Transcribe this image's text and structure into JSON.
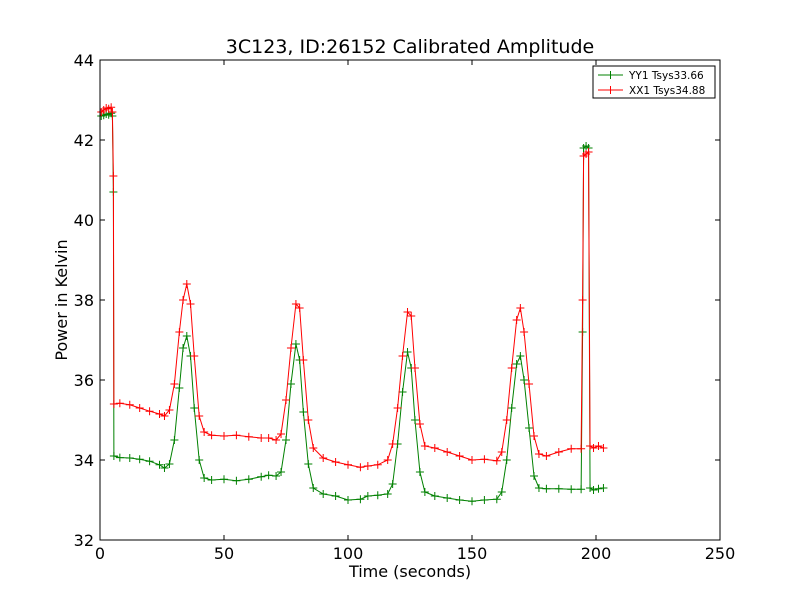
{
  "chart_data": {
    "type": "line",
    "title": "3C123, ID:26152 Calibrated Amplitude",
    "xlabel": "Time (seconds)",
    "ylabel": "Power in Kelvin",
    "xlim": [
      0,
      250
    ],
    "ylim": [
      32,
      44
    ],
    "xticks": [
      0,
      50,
      100,
      150,
      200,
      250
    ],
    "yticks": [
      32,
      34,
      36,
      38,
      40,
      42,
      44
    ],
    "grid": false,
    "legend_position": "top-right",
    "marker": "+",
    "series": [
      {
        "name": "YY1 Tsys33.66",
        "color": "#008000",
        "points": [
          [
            0.5,
            42.6
          ],
          [
            1.5,
            42.62
          ],
          [
            2.5,
            42.65
          ],
          [
            3.5,
            42.63
          ],
          [
            4.5,
            42.67
          ],
          [
            5.0,
            42.6
          ],
          [
            5.4,
            40.7
          ],
          [
            5.6,
            34.1
          ],
          [
            8,
            34.06
          ],
          [
            12,
            34.05
          ],
          [
            16,
            34.02
          ],
          [
            20,
            33.97
          ],
          [
            24,
            33.88
          ],
          [
            26,
            33.8
          ],
          [
            28,
            33.9
          ],
          [
            30,
            34.5
          ],
          [
            32,
            35.8
          ],
          [
            33.5,
            36.8
          ],
          [
            35,
            37.1
          ],
          [
            36.5,
            36.6
          ],
          [
            38,
            35.3
          ],
          [
            40,
            34.0
          ],
          [
            42,
            33.55
          ],
          [
            45,
            33.5
          ],
          [
            50,
            33.52
          ],
          [
            55,
            33.48
          ],
          [
            60,
            33.52
          ],
          [
            65,
            33.58
          ],
          [
            68,
            33.62
          ],
          [
            71,
            33.6
          ],
          [
            73,
            33.7
          ],
          [
            75,
            34.5
          ],
          [
            77,
            35.9
          ],
          [
            79,
            36.9
          ],
          [
            80.5,
            36.5
          ],
          [
            82,
            35.2
          ],
          [
            84,
            33.9
          ],
          [
            86,
            33.3
          ],
          [
            90,
            33.15
          ],
          [
            95,
            33.1
          ],
          [
            100,
            33.0
          ],
          [
            105,
            33.02
          ],
          [
            108,
            33.1
          ],
          [
            112,
            33.12
          ],
          [
            116,
            33.15
          ],
          [
            118,
            33.4
          ],
          [
            120,
            34.4
          ],
          [
            122,
            35.7
          ],
          [
            124,
            36.7
          ],
          [
            125.5,
            36.3
          ],
          [
            127,
            35.0
          ],
          [
            129,
            33.7
          ],
          [
            131,
            33.2
          ],
          [
            135,
            33.1
          ],
          [
            140,
            33.05
          ],
          [
            145,
            33.0
          ],
          [
            150,
            32.97
          ],
          [
            155,
            33.0
          ],
          [
            160,
            33.02
          ],
          [
            162,
            33.2
          ],
          [
            164,
            34.0
          ],
          [
            166,
            35.3
          ],
          [
            168,
            36.4
          ],
          [
            169.5,
            36.6
          ],
          [
            171,
            36.0
          ],
          [
            173,
            34.8
          ],
          [
            175,
            33.6
          ],
          [
            177,
            33.3
          ],
          [
            180,
            33.28
          ],
          [
            185,
            33.28
          ],
          [
            190,
            33.27
          ],
          [
            194,
            33.27
          ],
          [
            194.6,
            37.2
          ],
          [
            195,
            41.8
          ],
          [
            196,
            41.85
          ],
          [
            197,
            41.8
          ],
          [
            197.6,
            33.3
          ],
          [
            199,
            33.25
          ],
          [
            201,
            33.28
          ],
          [
            203,
            33.3
          ]
        ]
      },
      {
        "name": "XX1 Tsys34.88",
        "color": "#ff0000",
        "points": [
          [
            0.5,
            42.7
          ],
          [
            1.5,
            42.75
          ],
          [
            2.5,
            42.8
          ],
          [
            3.5,
            42.78
          ],
          [
            4.5,
            42.82
          ],
          [
            5.0,
            42.7
          ],
          [
            5.4,
            41.1
          ],
          [
            5.6,
            35.4
          ],
          [
            8,
            35.42
          ],
          [
            12,
            35.38
          ],
          [
            16,
            35.3
          ],
          [
            20,
            35.22
          ],
          [
            24,
            35.15
          ],
          [
            26,
            35.1
          ],
          [
            28,
            35.25
          ],
          [
            30,
            35.9
          ],
          [
            32,
            37.2
          ],
          [
            33.5,
            38.0
          ],
          [
            35,
            38.4
          ],
          [
            36.5,
            37.9
          ],
          [
            38,
            36.6
          ],
          [
            40,
            35.1
          ],
          [
            42,
            34.7
          ],
          [
            45,
            34.62
          ],
          [
            50,
            34.6
          ],
          [
            55,
            34.62
          ],
          [
            60,
            34.58
          ],
          [
            65,
            34.55
          ],
          [
            68,
            34.55
          ],
          [
            71,
            34.5
          ],
          [
            73,
            34.65
          ],
          [
            75,
            35.5
          ],
          [
            77,
            36.8
          ],
          [
            79,
            37.9
          ],
          [
            80.5,
            37.8
          ],
          [
            82,
            36.5
          ],
          [
            84,
            35.0
          ],
          [
            86,
            34.3
          ],
          [
            90,
            34.05
          ],
          [
            95,
            33.95
          ],
          [
            100,
            33.88
          ],
          [
            105,
            33.82
          ],
          [
            108,
            33.85
          ],
          [
            112,
            33.88
          ],
          [
            116,
            34.0
          ],
          [
            118,
            34.4
          ],
          [
            120,
            35.3
          ],
          [
            122,
            36.6
          ],
          [
            124,
            37.7
          ],
          [
            125.5,
            37.6
          ],
          [
            127,
            36.3
          ],
          [
            129,
            34.9
          ],
          [
            131,
            34.35
          ],
          [
            135,
            34.3
          ],
          [
            140,
            34.2
          ],
          [
            145,
            34.1
          ],
          [
            150,
            34.0
          ],
          [
            155,
            34.02
          ],
          [
            160,
            33.98
          ],
          [
            162,
            34.2
          ],
          [
            164,
            35.0
          ],
          [
            166,
            36.3
          ],
          [
            168,
            37.5
          ],
          [
            169.5,
            37.8
          ],
          [
            171,
            37.2
          ],
          [
            173,
            35.9
          ],
          [
            175,
            34.6
          ],
          [
            177,
            34.15
          ],
          [
            180,
            34.1
          ],
          [
            185,
            34.2
          ],
          [
            190,
            34.28
          ],
          [
            194,
            34.28
          ],
          [
            194.6,
            38.0
          ],
          [
            195,
            41.6
          ],
          [
            196,
            41.65
          ],
          [
            197,
            41.7
          ],
          [
            197.6,
            34.35
          ],
          [
            199,
            34.3
          ],
          [
            201,
            34.35
          ],
          [
            203,
            34.3
          ]
        ]
      }
    ]
  }
}
